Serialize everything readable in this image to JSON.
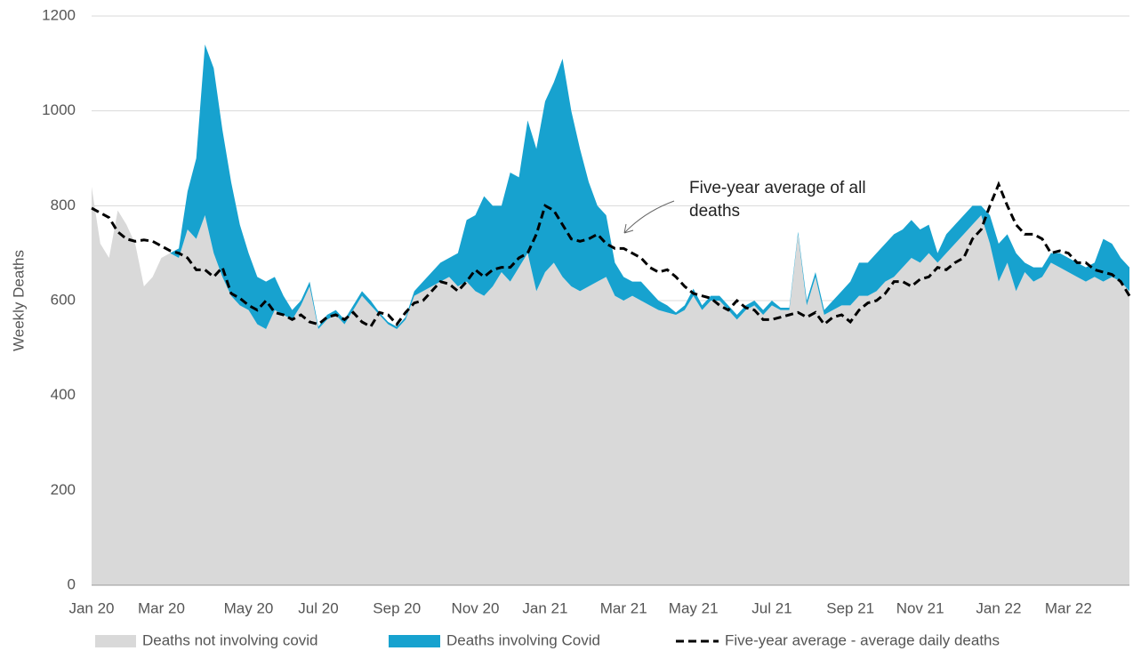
{
  "chart_data": {
    "type": "stacked-area-line",
    "ylabel": "Weekly Deaths",
    "annotation": [
      "Five-year average of all",
      "deaths"
    ],
    "categories": [
      "Jan 20",
      null,
      null,
      null,
      null,
      null,
      null,
      null,
      "Mar 20",
      null,
      null,
      null,
      null,
      null,
      null,
      null,
      null,
      null,
      "May 20",
      null,
      null,
      null,
      null,
      null,
      null,
      null,
      "Jul 20",
      null,
      null,
      null,
      null,
      null,
      null,
      null,
      null,
      "Sep 20",
      null,
      null,
      null,
      null,
      null,
      null,
      null,
      null,
      "Nov 20",
      null,
      null,
      null,
      null,
      null,
      null,
      null,
      "Jan 21",
      null,
      null,
      null,
      null,
      null,
      null,
      null,
      null,
      "Mar 21",
      null,
      null,
      null,
      null,
      null,
      null,
      null,
      "May 21",
      null,
      null,
      null,
      null,
      null,
      null,
      null,
      null,
      "Jul 21",
      null,
      null,
      null,
      null,
      null,
      null,
      null,
      null,
      "Sep 21",
      null,
      null,
      null,
      null,
      null,
      null,
      null,
      "Nov 21",
      null,
      null,
      null,
      null,
      null,
      null,
      null,
      null,
      "Jan 22",
      null,
      null,
      null,
      null,
      null,
      null,
      null,
      "Mar 22",
      null,
      null,
      null,
      null,
      null,
      null,
      null
    ],
    "series": [
      {
        "name": "Deaths not involving covid",
        "color": "#d9d9d9",
        "kind": "area",
        "values": [
          840,
          720,
          690,
          790,
          760,
          720,
          630,
          650,
          690,
          700,
          690,
          750,
          730,
          780,
          700,
          650,
          610,
          590,
          580,
          550,
          540,
          580,
          570,
          560,
          590,
          630,
          540,
          560,
          570,
          550,
          580,
          610,
          590,
          570,
          550,
          540,
          560,
          610,
          620,
          630,
          640,
          650,
          630,
          640,
          620,
          610,
          630,
          660,
          640,
          670,
          700,
          620,
          660,
          680,
          650,
          630,
          620,
          630,
          640,
          650,
          610,
          600,
          610,
          600,
          590,
          580,
          575,
          570,
          580,
          610,
          580,
          600,
          600,
          580,
          560,
          580,
          590,
          570,
          590,
          580,
          580,
          740,
          590,
          650,
          570,
          580,
          590,
          590,
          610,
          610,
          620,
          640,
          650,
          670,
          690,
          680,
          700,
          680,
          700,
          720,
          740,
          760,
          780,
          720,
          640,
          680,
          620,
          660,
          640,
          650,
          680,
          670,
          660,
          650,
          640,
          650,
          640,
          650,
          640,
          620
        ]
      },
      {
        "name": "Deaths involving Covid",
        "color": "#17a2cf",
        "kind": "area",
        "values": [
          0,
          0,
          0,
          0,
          0,
          0,
          0,
          0,
          0,
          0,
          20,
          80,
          170,
          360,
          390,
          310,
          240,
          170,
          120,
          100,
          100,
          70,
          40,
          20,
          10,
          10,
          5,
          10,
          10,
          10,
          10,
          10,
          10,
          5,
          5,
          5,
          5,
          10,
          20,
          30,
          40,
          40,
          70,
          130,
          160,
          210,
          170,
          140,
          230,
          190,
          280,
          300,
          360,
          380,
          460,
          370,
          300,
          220,
          160,
          130,
          70,
          50,
          30,
          40,
          30,
          20,
          15,
          5,
          10,
          15,
          10,
          10,
          10,
          10,
          10,
          10,
          10,
          10,
          10,
          5,
          5,
          5,
          10,
          10,
          10,
          20,
          30,
          50,
          70,
          70,
          80,
          80,
          90,
          80,
          80,
          70,
          60,
          20,
          40,
          40,
          40,
          40,
          20,
          60,
          80,
          60,
          80,
          20,
          30,
          20,
          20,
          30,
          30,
          30,
          30,
          30,
          90,
          70,
          50,
          50
        ]
      },
      {
        "name": "Five-year average - average daily deaths",
        "color": "#000000",
        "kind": "line",
        "dash": true,
        "values": [
          795,
          785,
          775,
          745,
          730,
          725,
          728,
          725,
          715,
          705,
          700,
          690,
          665,
          665,
          650,
          670,
          615,
          605,
          590,
          580,
          600,
          575,
          570,
          560,
          570,
          555,
          550,
          565,
          570,
          560,
          575,
          555,
          545,
          575,
          570,
          550,
          575,
          595,
          600,
          620,
          640,
          635,
          620,
          640,
          665,
          650,
          665,
          670,
          670,
          690,
          700,
          740,
          800,
          790,
          760,
          730,
          725,
          730,
          740,
          720,
          710,
          710,
          700,
          690,
          670,
          660,
          665,
          650,
          630,
          615,
          610,
          605,
          590,
          580,
          600,
          585,
          580,
          560,
          560,
          565,
          570,
          575,
          565,
          575,
          550,
          565,
          570,
          555,
          580,
          595,
          600,
          615,
          640,
          640,
          630,
          645,
          650,
          670,
          665,
          680,
          690,
          730,
          750,
          800,
          845,
          800,
          760,
          740,
          740,
          730,
          700,
          705,
          700,
          680,
          680,
          665,
          660,
          655,
          640,
          610
        ]
      }
    ],
    "ylim": [
      0,
      1200
    ],
    "yticks": [
      0,
      200,
      400,
      600,
      800,
      1000,
      1200
    ],
    "grid": true
  }
}
